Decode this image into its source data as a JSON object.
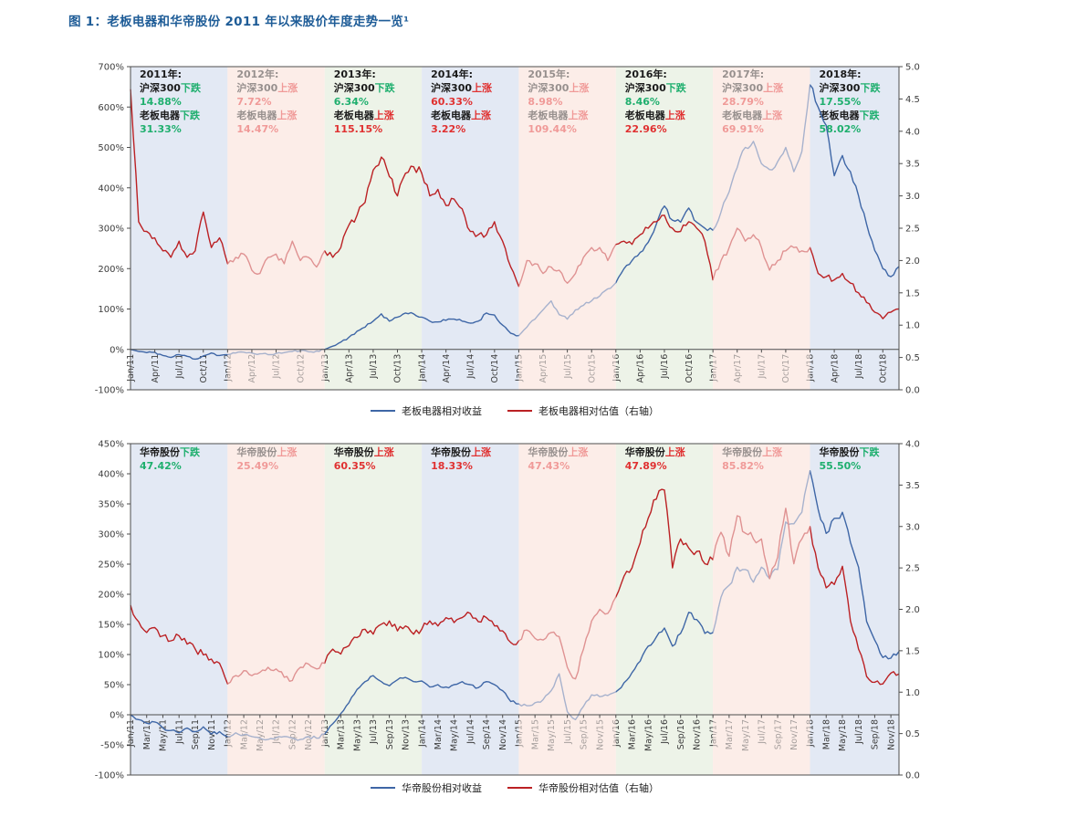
{
  "title": "图 1：老板电器和华帝股份 2011 年以来股价年度走势一览¹",
  "colors": {
    "title": "#1E5C97",
    "return_line": "#3E66A6",
    "valuation_line": "#BB2124",
    "band_blue": "#E3E9F4",
    "band_pink": "#FBE9E3",
    "band_green": "#EDF3E8",
    "pink_overlay": "rgba(253,241,237,0.55)",
    "up_red": "#E03131",
    "down_green": "#1FAF6E",
    "text_dark": "#1A1A1A",
    "axis_line": "#4D4D4D",
    "tick_label": "#3D3D3D"
  },
  "chart_data": [
    {
      "id": "robam",
      "type": "line",
      "x_unit": "monthly, Jan/11 – Dec/18",
      "years": [
        {
          "label": "2011年:",
          "band": "blue",
          "index_name": "沪深300",
          "index_verb": "下跌",
          "index_dir": "down",
          "index_pct": "14.88%",
          "stock_name": "老板电器",
          "stock_verb": "下跌",
          "stock_dir": "down",
          "stock_pct": "31.33%"
        },
        {
          "label": "2012年:",
          "band": "pink",
          "index_name": "沪深300",
          "index_verb": "上涨",
          "index_dir": "up",
          "index_pct": "7.72%",
          "stock_name": "老板电器",
          "stock_verb": "上涨",
          "stock_dir": "up",
          "stock_pct": "14.47%"
        },
        {
          "label": "2013年:",
          "band": "green",
          "index_name": "沪深300",
          "index_verb": "下跌",
          "index_dir": "down",
          "index_pct": "6.34%",
          "stock_name": "老板电器",
          "stock_verb": "上涨",
          "stock_dir": "up",
          "stock_pct": "115.15%"
        },
        {
          "label": "2014年:",
          "band": "blue",
          "index_name": "沪深300",
          "index_verb": "上涨",
          "index_dir": "up",
          "index_pct": "60.33%",
          "stock_name": "老板电器",
          "stock_verb": "上涨",
          "stock_dir": "up",
          "stock_pct": "3.22%"
        },
        {
          "label": "2015年:",
          "band": "pink",
          "index_name": "沪深300",
          "index_verb": "上涨",
          "index_dir": "up",
          "index_pct": "8.98%",
          "stock_name": "老板电器",
          "stock_verb": "上涨",
          "stock_dir": "up",
          "stock_pct": "109.44%"
        },
        {
          "label": "2016年:",
          "band": "green",
          "index_name": "沪深300",
          "index_verb": "下跌",
          "index_dir": "down",
          "index_pct": "8.46%",
          "stock_name": "老板电器",
          "stock_verb": "上涨",
          "stock_dir": "up",
          "stock_pct": "22.96%"
        },
        {
          "label": "2017年:",
          "band": "pink",
          "index_name": "沪深300",
          "index_verb": "上涨",
          "index_dir": "up",
          "index_pct": "28.79%",
          "stock_name": "老板电器",
          "stock_verb": "上涨",
          "stock_dir": "up",
          "stock_pct": "69.91%"
        },
        {
          "label": "2018年:",
          "band": "blue",
          "index_name": "沪深300",
          "index_verb": "下跌",
          "index_dir": "down",
          "index_pct": "17.55%",
          "stock_name": "老板电器",
          "stock_verb": "下跌",
          "stock_dir": "down",
          "stock_pct": "58.02%"
        }
      ],
      "left_axis": {
        "max": 700,
        "min": -100,
        "labels": [
          "700%",
          "600%",
          "500%",
          "400%",
          "300%",
          "200%",
          "100%",
          "0%",
          "-100%"
        ]
      },
      "right_axis": {
        "max": 5,
        "min": 0,
        "labels": [
          "5.0",
          "4.5",
          "4.0",
          "3.5",
          "3.0",
          "2.5",
          "2.0",
          "1.5",
          "1.0",
          "0.5",
          "0.0"
        ]
      },
      "x_tick_month_step": 3,
      "x_tick_labels": [
        "Jan/11",
        "Apr/11",
        "Jul/11",
        "Oct/11",
        "Jan/12",
        "Apr/12",
        "Jul/12",
        "Oct/12",
        "Jan/13",
        "Apr/13",
        "Jul/13",
        "Oct/13",
        "Jan/14",
        "Apr/14",
        "Jul/14",
        "Oct/14",
        "Jan/15",
        "Apr/15",
        "Jul/15",
        "Oct/15",
        "Jan/16",
        "Apr/16",
        "Jul/16",
        "Oct/16",
        "Jan/17",
        "Apr/17",
        "Jul/17",
        "Oct/17",
        "Jan/18",
        "Apr/18",
        "Jul/18",
        "Oct/18"
      ],
      "series": [
        {
          "name": "老板电器相对收益",
          "axis": "left",
          "color_key": "return_line",
          "monthly": [
            0,
            -5,
            -8,
            -7,
            -15,
            -20,
            -13,
            -17,
            -24,
            -16,
            -9,
            -15,
            -13,
            -9,
            -7,
            -9,
            -11,
            -13,
            -10,
            -8,
            -5,
            -3,
            -6,
            -4,
            0,
            8,
            18,
            30,
            45,
            55,
            70,
            88,
            70,
            80,
            90,
            88,
            80,
            70,
            68,
            72,
            75,
            70,
            65,
            70,
            90,
            85,
            60,
            40,
            34,
            55,
            75,
            98,
            120,
            86,
            75,
            98,
            109,
            120,
            132,
            150,
            165,
            200,
            220,
            240,
            265,
            310,
            355,
            320,
            315,
            350,
            315,
            300,
            295,
            340,
            390,
            450,
            500,
            515,
            460,
            445,
            465,
            500,
            440,
            490,
            655,
            600,
            555,
            430,
            480,
            440,
            380,
            310,
            245,
            200,
            180,
            205
          ]
        },
        {
          "name": "老板电器相对估值（右轴）",
          "axis": "right",
          "color_key": "valuation_line",
          "monthly": [
            4.65,
            2.6,
            2.45,
            2.35,
            2.15,
            2.05,
            2.3,
            2.05,
            2.15,
            2.75,
            2.2,
            2.35,
            1.95,
            2.05,
            2.1,
            1.85,
            1.8,
            2.05,
            2.1,
            1.95,
            2.3,
            2.0,
            2.05,
            1.9,
            2.15,
            2.05,
            2.2,
            2.55,
            2.7,
            2.9,
            3.4,
            3.6,
            3.3,
            3.0,
            3.35,
            3.45,
            3.35,
            3.0,
            3.1,
            2.85,
            2.95,
            2.8,
            2.45,
            2.4,
            2.4,
            2.6,
            2.3,
            1.9,
            1.6,
            2.0,
            1.95,
            1.8,
            1.9,
            1.85,
            1.65,
            1.8,
            2.05,
            2.2,
            2.2,
            2.0,
            2.25,
            2.3,
            2.25,
            2.4,
            2.5,
            2.6,
            2.7,
            2.5,
            2.45,
            2.6,
            2.5,
            2.3,
            1.7,
            2.0,
            2.2,
            2.5,
            2.3,
            2.4,
            2.2,
            1.85,
            2.0,
            2.15,
            2.2,
            2.15,
            2.2,
            1.8,
            1.75,
            1.7,
            1.8,
            1.65,
            1.5,
            1.35,
            1.2,
            1.1,
            1.2,
            1.25
          ]
        }
      ]
    },
    {
      "id": "vatti",
      "type": "line",
      "x_unit": "monthly, Jan/11 – Dec/18",
      "years": [
        {
          "band": "blue",
          "stock_name": "华帝股份",
          "stock_verb": "下跌",
          "stock_dir": "down",
          "stock_pct": "47.42%"
        },
        {
          "band": "pink",
          "stock_name": "华帝股份",
          "stock_verb": "上涨",
          "stock_dir": "up",
          "stock_pct": "25.49%"
        },
        {
          "band": "green",
          "stock_name": "华帝股份",
          "stock_verb": "上涨",
          "stock_dir": "up",
          "stock_pct": "60.35%"
        },
        {
          "band": "blue",
          "stock_name": "华帝股份",
          "stock_verb": "上涨",
          "stock_dir": "up",
          "stock_pct": "18.33%"
        },
        {
          "band": "pink",
          "stock_name": "华帝股份",
          "stock_verb": "上涨",
          "stock_dir": "up",
          "stock_pct": "47.43%"
        },
        {
          "band": "green",
          "stock_name": "华帝股份",
          "stock_verb": "上涨",
          "stock_dir": "up",
          "stock_pct": "47.89%"
        },
        {
          "band": "pink",
          "stock_name": "华帝股份",
          "stock_verb": "上涨",
          "stock_dir": "up",
          "stock_pct": "85.82%"
        },
        {
          "band": "blue",
          "stock_name": "华帝股份",
          "stock_verb": "下跌",
          "stock_dir": "down",
          "stock_pct": "55.50%"
        }
      ],
      "left_axis": {
        "max": 450,
        "min": -100,
        "labels": [
          "450%",
          "400%",
          "350%",
          "300%",
          "250%",
          "200%",
          "150%",
          "100%",
          "50%",
          "0%",
          "-50%",
          "-100%"
        ]
      },
      "right_axis": {
        "max": 4,
        "min": 0,
        "labels": [
          "4.0",
          "3.5",
          "3.0",
          "2.5",
          "2.0",
          "1.5",
          "1.0",
          "0.5",
          "0.0"
        ]
      },
      "x_tick_month_step": 2,
      "x_tick_labels": [
        "Jan/11",
        "Mar/11",
        "May/11",
        "Jul/11",
        "Sep/11",
        "Nov/11",
        "Jan/12",
        "Mar/12",
        "May/12",
        "Jul/12",
        "Sep/12",
        "Nov/12",
        "Jan/13",
        "Mar/13",
        "May/13",
        "Jul/13",
        "Sep/13",
        "Nov/13",
        "Jan/14",
        "Mar/14",
        "May/14",
        "Jul/14",
        "Sep/14",
        "Nov/14",
        "Jan/15",
        "Mar/15",
        "May/15",
        "Jul/15",
        "Sep/15",
        "Nov/15",
        "Jan/16",
        "Mar/16",
        "May/16",
        "Jul/16",
        "Sep/16",
        "Nov/16",
        "Jan/17",
        "Mar/17",
        "May/17",
        "Jul/17",
        "Sep/17",
        "Nov/17",
        "Jan/18",
        "Mar/18",
        "May/18",
        "Jul/18",
        "Sep/18",
        "Nov/18"
      ],
      "series": [
        {
          "name": "华帝股份相对收益",
          "axis": "left",
          "color_key": "return_line",
          "monthly": [
            0,
            -8,
            -14,
            -12,
            -22,
            -26,
            -30,
            -22,
            -28,
            -20,
            -32,
            -28,
            -36,
            -30,
            -33,
            -36,
            -39,
            -41,
            -38,
            -36,
            -39,
            -41,
            -36,
            -39,
            -32,
            -15,
            2,
            20,
            42,
            55,
            65,
            55,
            48,
            58,
            62,
            55,
            56,
            46,
            50,
            46,
            50,
            55,
            50,
            45,
            55,
            50,
            40,
            22,
            18,
            15,
            20,
            25,
            40,
            68,
            5,
            -8,
            14,
            33,
            30,
            32,
            38,
            53,
            70,
            89,
            114,
            129,
            144,
            114,
            135,
            170,
            158,
            135,
            136,
            195,
            215,
            245,
            241,
            220,
            245,
            226,
            241,
            320,
            317,
            336,
            405,
            341,
            301,
            326,
            336,
            286,
            245,
            155,
            124,
            95,
            94,
            105
          ]
        },
        {
          "name": "华帝股份相对估值（右轴）",
          "axis": "right",
          "color_key": "valuation_line",
          "monthly": [
            2.05,
            1.85,
            1.72,
            1.78,
            1.68,
            1.62,
            1.68,
            1.58,
            1.52,
            1.45,
            1.4,
            1.35,
            1.1,
            1.2,
            1.26,
            1.2,
            1.24,
            1.3,
            1.28,
            1.18,
            1.14,
            1.3,
            1.34,
            1.28,
            1.35,
            1.52,
            1.46,
            1.56,
            1.66,
            1.76,
            1.7,
            1.82,
            1.86,
            1.74,
            1.8,
            1.7,
            1.76,
            1.86,
            1.8,
            1.9,
            1.84,
            1.9,
            1.95,
            1.85,
            1.9,
            1.8,
            1.74,
            1.6,
            1.62,
            1.75,
            1.65,
            1.63,
            1.72,
            1.67,
            1.3,
            1.16,
            1.52,
            1.86,
            2.0,
            1.95,
            2.15,
            2.4,
            2.5,
            2.8,
            3.1,
            3.33,
            3.44,
            2.5,
            2.85,
            2.74,
            2.7,
            2.55,
            2.6,
            2.93,
            2.64,
            3.13,
            2.92,
            2.85,
            2.85,
            2.37,
            2.63,
            3.22,
            2.55,
            2.85,
            3.0,
            2.5,
            2.26,
            2.3,
            2.52,
            1.86,
            1.52,
            1.19,
            1.12,
            1.1,
            1.23,
            1.22
          ]
        }
      ]
    }
  ]
}
